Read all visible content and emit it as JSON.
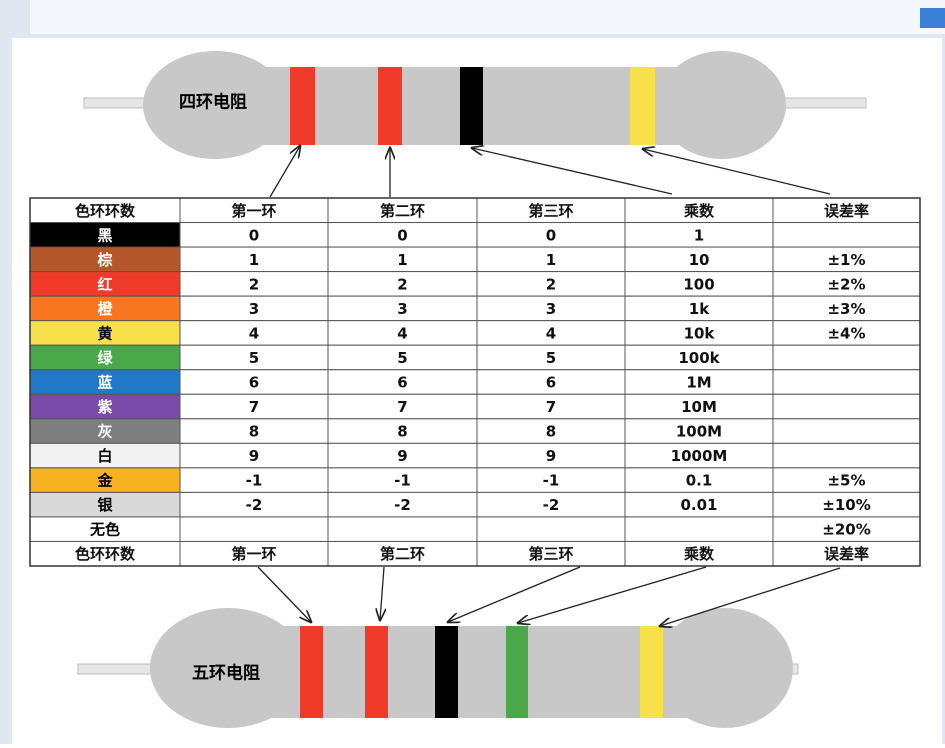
{
  "top_resistor": {
    "label": "四环电阻"
  },
  "bottom_resistor": {
    "label": "五环电阻"
  },
  "table": {
    "header": [
      "色环环数",
      "第一环",
      "第二环",
      "第三环",
      "乘数",
      "误差率"
    ],
    "rows": [
      {
        "color": "#000000",
        "text_color": "#ffffff",
        "cells": [
          "黑",
          "0",
          "0",
          "0",
          "1",
          null
        ]
      },
      {
        "color": "#b5572a",
        "text_color": "#ffffff",
        "cells": [
          "棕",
          "1",
          "1",
          "1",
          "10",
          "±1%"
        ]
      },
      {
        "color": "#f03a2a",
        "text_color": "#ffffff",
        "cells": [
          "红",
          "2",
          "2",
          "2",
          "100",
          "±2%"
        ]
      },
      {
        "color": "#f7761f",
        "text_color": "#ffffff",
        "cells": [
          "橙",
          "3",
          "3",
          "3",
          "1k",
          "±3%"
        ]
      },
      {
        "color": "#f7e04a",
        "text_color": "#000000",
        "cells": [
          "黄",
          "4",
          "4",
          "4",
          "10k",
          "±4%"
        ]
      },
      {
        "color": "#4aa84a",
        "text_color": "#ffffff",
        "cells": [
          "绿",
          "5",
          "5",
          "5",
          "100k",
          null
        ]
      },
      {
        "color": "#1f78c8",
        "text_color": "#ffffff",
        "cells": [
          "蓝",
          "6",
          "6",
          "6",
          "1M",
          null
        ]
      },
      {
        "color": "#7a4aa8",
        "text_color": "#ffffff",
        "cells": [
          "紫",
          "7",
          "7",
          "7",
          "10M",
          null
        ]
      },
      {
        "color": "#7f7f7f",
        "text_color": "#ffffff",
        "cells": [
          "灰",
          "8",
          "8",
          "8",
          "100M",
          null
        ]
      },
      {
        "color": "#f2f2f2",
        "text_color": "#000000",
        "cells": [
          "白",
          "9",
          "9",
          "9",
          "1000M",
          null
        ]
      },
      {
        "color": "#f7b21f",
        "text_color": "#000000",
        "cells": [
          "金",
          "-1",
          "-1",
          "-1",
          "0.1",
          "±5%"
        ]
      },
      {
        "color": "#d9d9d9",
        "text_color": "#000000",
        "cells": [
          "银",
          "-2",
          "-2",
          "-2",
          "0.01",
          "±10%"
        ]
      },
      {
        "color": "#ffffff",
        "text_color": "#000000",
        "cells": [
          "无色",
          null,
          null,
          null,
          null,
          "±20%"
        ]
      }
    ],
    "footer": [
      "色环环数",
      "第一环",
      "第二环",
      "第三环",
      "乘数",
      "误差率"
    ]
  }
}
